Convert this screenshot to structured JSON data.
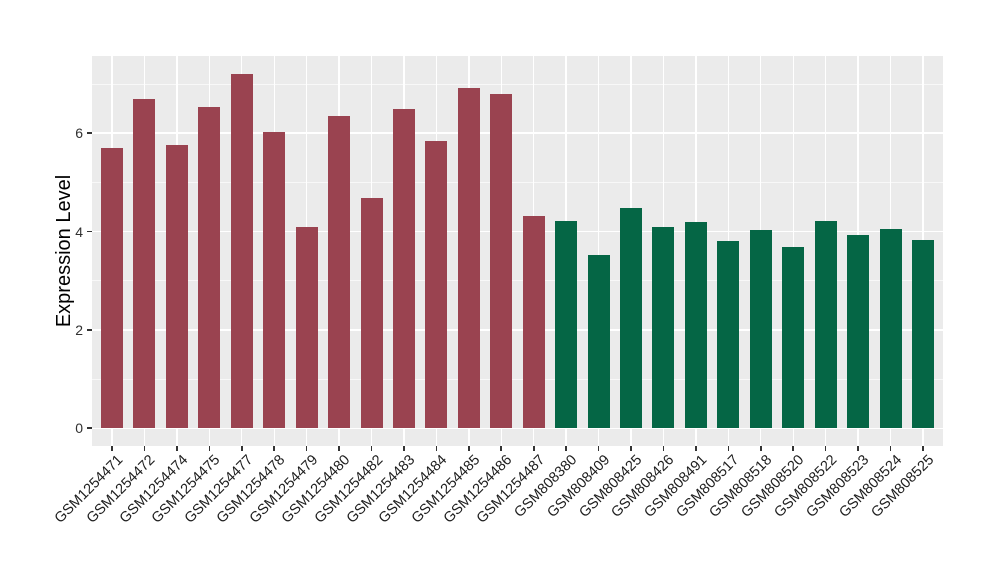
{
  "figure": {
    "background_color": "#FFFFFF",
    "panel_background_color": "#EBEBEB",
    "gridline_color": "#FFFFFF",
    "tick_mark_color": "#333333",
    "axis_text_color": "#1d1d1d",
    "axis_title_color": "#000000"
  },
  "chart_data": {
    "type": "bar",
    "title": "",
    "xlabel": "",
    "ylabel": "Expression Level",
    "axis_range": [
      -0.36,
      7.57
    ],
    "yticks": [
      0,
      2,
      4,
      6
    ],
    "yminor_ticks": [
      1,
      3,
      5,
      7
    ],
    "grid": "white major+minor horizontal lines, white vertical line at each category",
    "legend_position": "none",
    "group_colors": {
      "maroon": "#9A4350",
      "green": "#056645"
    },
    "bars": [
      {
        "label": "GSM1254471",
        "value": 5.7,
        "group": "maroon"
      },
      {
        "label": "GSM1254472",
        "value": 6.7,
        "group": "maroon"
      },
      {
        "label": "GSM1254474",
        "value": 5.77,
        "group": "maroon"
      },
      {
        "label": "GSM1254475",
        "value": 6.53,
        "group": "maroon"
      },
      {
        "label": "GSM1254477",
        "value": 7.21,
        "group": "maroon"
      },
      {
        "label": "GSM1254478",
        "value": 6.03,
        "group": "maroon"
      },
      {
        "label": "GSM1254479",
        "value": 4.09,
        "group": "maroon"
      },
      {
        "label": "GSM1254480",
        "value": 6.35,
        "group": "maroon"
      },
      {
        "label": "GSM1254482",
        "value": 4.68,
        "group": "maroon"
      },
      {
        "label": "GSM1254483",
        "value": 6.49,
        "group": "maroon"
      },
      {
        "label": "GSM1254484",
        "value": 5.85,
        "group": "maroon"
      },
      {
        "label": "GSM1254485",
        "value": 6.92,
        "group": "maroon"
      },
      {
        "label": "GSM1254486",
        "value": 6.8,
        "group": "maroon"
      },
      {
        "label": "GSM1254487",
        "value": 4.32,
        "group": "maroon"
      },
      {
        "label": "GSM808380",
        "value": 4.22,
        "group": "green"
      },
      {
        "label": "GSM808409",
        "value": 3.52,
        "group": "green"
      },
      {
        "label": "GSM808425",
        "value": 4.47,
        "group": "green"
      },
      {
        "label": "GSM808426",
        "value": 4.09,
        "group": "green"
      },
      {
        "label": "GSM808491",
        "value": 4.2,
        "group": "green"
      },
      {
        "label": "GSM808517",
        "value": 3.81,
        "group": "green"
      },
      {
        "label": "GSM808518",
        "value": 4.03,
        "group": "green"
      },
      {
        "label": "GSM808520",
        "value": 3.69,
        "group": "green"
      },
      {
        "label": "GSM808522",
        "value": 4.22,
        "group": "green"
      },
      {
        "label": "GSM808523",
        "value": 3.93,
        "group": "green"
      },
      {
        "label": "GSM808524",
        "value": 4.05,
        "group": "green"
      },
      {
        "label": "GSM808525",
        "value": 3.83,
        "group": "green"
      }
    ]
  }
}
